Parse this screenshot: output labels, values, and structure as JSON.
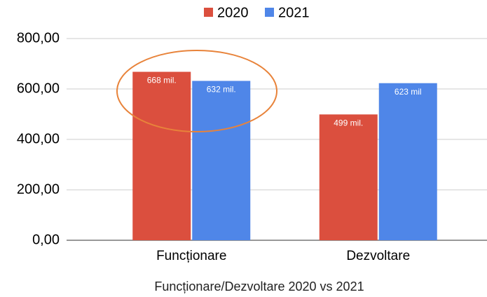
{
  "chart_data": {
    "type": "bar",
    "categories": [
      "Funcționare",
      "Dezvoltare"
    ],
    "series": [
      {
        "name": "2020",
        "color": "#db4f3e",
        "values": [
          668,
          499
        ],
        "value_labels": [
          "668 mil.",
          "499 mil."
        ]
      },
      {
        "name": "2021",
        "color": "#4f86e8",
        "values": [
          632,
          623
        ],
        "value_labels": [
          "632 mil.",
          "623 mil"
        ]
      }
    ],
    "x_label": "Funcționare/Dezvoltare 2020 vs 2021",
    "ylim": [
      0,
      800
    ],
    "yticks": [
      {
        "value": 0,
        "label": "0,00"
      },
      {
        "value": 200,
        "label": "200,00"
      },
      {
        "value": 400,
        "label": "400,00"
      },
      {
        "value": 600,
        "label": "600,00"
      },
      {
        "value": 800,
        "label": "800,00"
      }
    ],
    "grid": true,
    "legend": "top"
  }
}
